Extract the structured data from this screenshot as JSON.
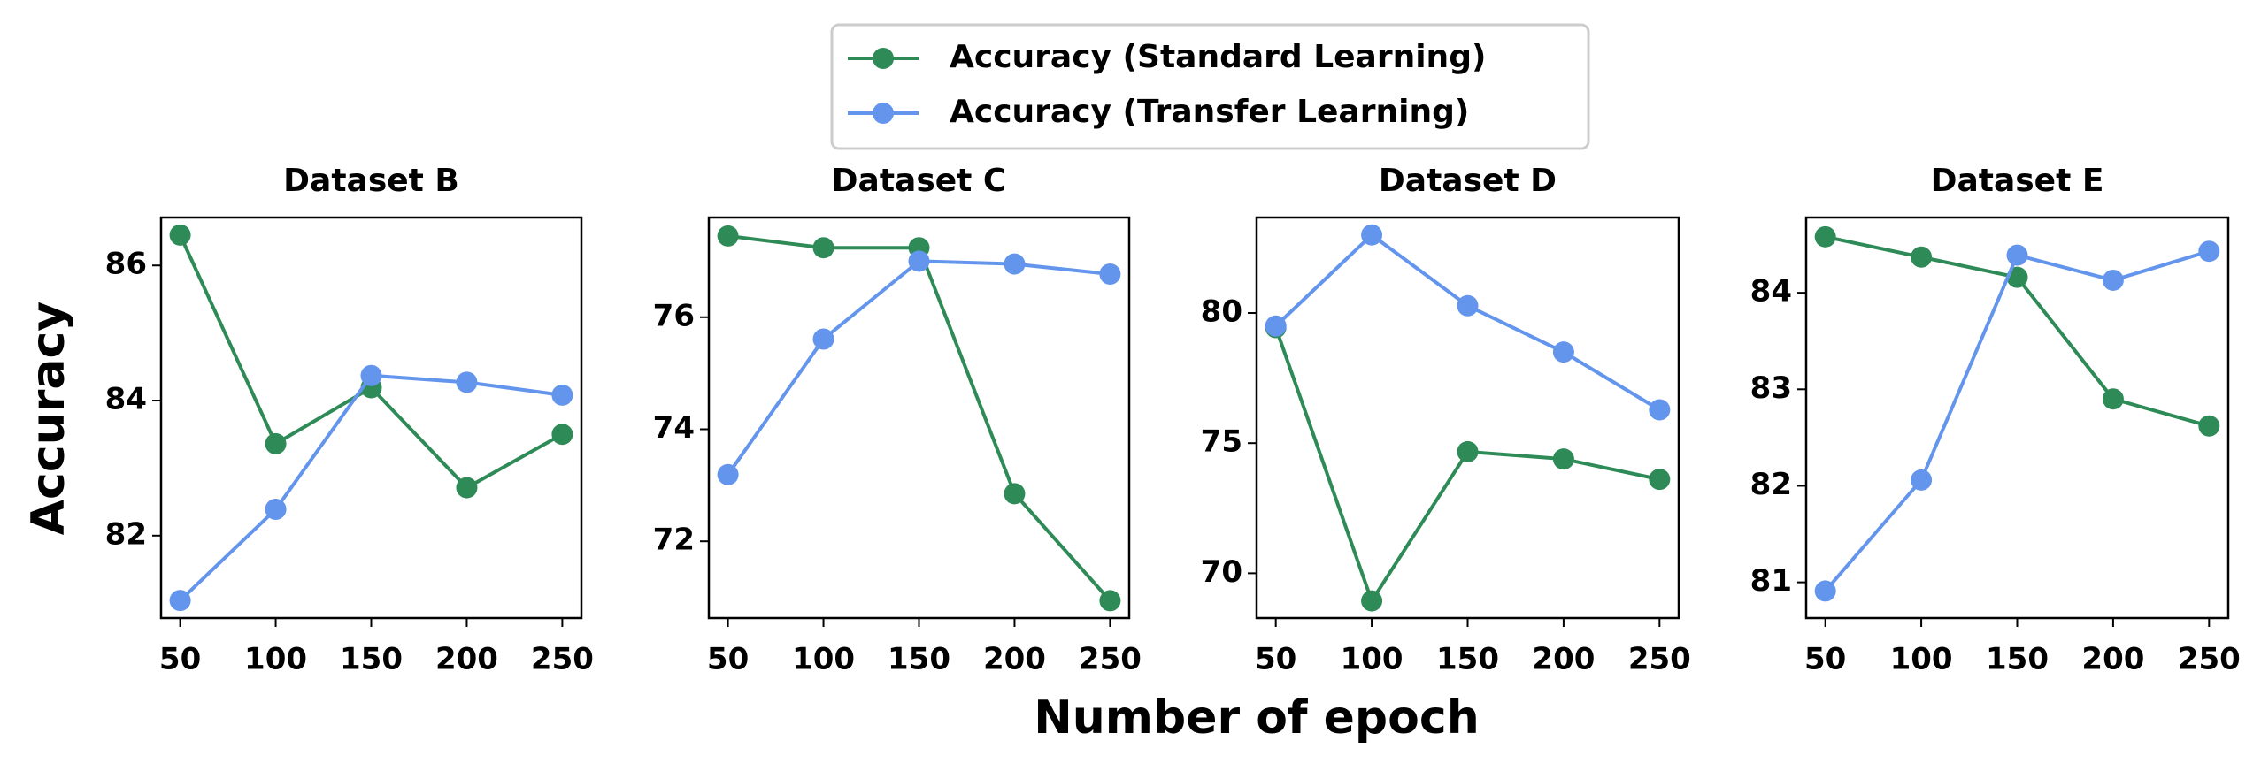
{
  "chart_data": [
    {
      "type": "line",
      "title": "Dataset B",
      "ylabel": "Accuracy",
      "xlabel": "Number of epoch",
      "x": [
        50,
        100,
        150,
        200,
        250
      ],
      "xlim": [
        40,
        260
      ],
      "xticks": [
        50,
        100,
        150,
        200,
        250
      ],
      "ylim": [
        80.78,
        86.71
      ],
      "yticks": [
        82,
        84,
        86
      ],
      "legend": "upper center",
      "series": [
        {
          "name": "Accuracy (Standard Learning)",
          "color": "#2e8b57",
          "values": [
            86.45,
            83.36,
            84.19,
            82.71,
            83.5
          ]
        },
        {
          "name": "Accuracy (Transfer Learning)",
          "color": "#6495ed",
          "values": [
            81.04,
            82.39,
            84.37,
            84.27,
            84.08
          ]
        }
      ]
    },
    {
      "type": "line",
      "title": "Dataset C",
      "x": [
        50,
        100,
        150,
        200,
        250
      ],
      "xlim": [
        40,
        260
      ],
      "xticks": [
        50,
        100,
        150,
        200,
        250
      ],
      "ylim": [
        70.63,
        77.78
      ],
      "yticks": [
        72,
        74,
        76
      ],
      "series": [
        {
          "color": "#2e8b57",
          "values": [
            77.45,
            77.24,
            77.24,
            72.85,
            70.94
          ]
        },
        {
          "color": "#6495ed",
          "values": [
            73.19,
            75.61,
            77.0,
            76.95,
            76.77
          ]
        }
      ]
    },
    {
      "type": "line",
      "title": "Dataset D",
      "x": [
        50,
        100,
        150,
        200,
        250
      ],
      "xlim": [
        40,
        260
      ],
      "xticks": [
        50,
        100,
        150,
        200,
        250
      ],
      "ylim": [
        68.28,
        83.67
      ],
      "yticks": [
        70,
        75,
        80
      ],
      "series": [
        {
          "color": "#2e8b57",
          "values": [
            79.44,
            68.94,
            74.67,
            74.39,
            73.61
          ]
        },
        {
          "color": "#6495ed",
          "values": [
            79.5,
            83.0,
            80.28,
            78.5,
            76.28
          ]
        }
      ]
    },
    {
      "type": "line",
      "title": "Dataset E",
      "x": [
        50,
        100,
        150,
        200,
        250
      ],
      "xlim": [
        40,
        260
      ],
      "xticks": [
        50,
        100,
        150,
        200,
        250
      ],
      "ylim": [
        80.63,
        84.78
      ],
      "yticks": [
        81,
        82,
        83,
        84
      ],
      "series": [
        {
          "color": "#2e8b57",
          "values": [
            84.58,
            84.37,
            84.16,
            82.9,
            82.62
          ]
        },
        {
          "color": "#6495ed",
          "values": [
            80.91,
            82.06,
            84.39,
            84.13,
            84.43
          ]
        }
      ]
    }
  ]
}
